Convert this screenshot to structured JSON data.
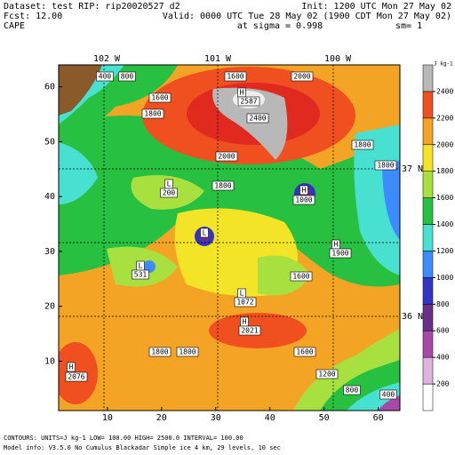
{
  "header": {
    "dataset": "Dataset: test  RIP: rip20020527  d2",
    "init": "Init: 1200 UTC Mon 27 May 02",
    "fcst": "Fcst:     12.00",
    "valid": "Valid: 0000 UTC Tue 28 May 02 (1900 CDT Mon 27 May 02)",
    "field": "CAPE",
    "level": "at sigma = 0.998",
    "smooth": "sm= 1"
  },
  "map": {
    "xlim": [
      1,
      64
    ],
    "ylim": [
      1,
      64
    ],
    "xticks": [
      10,
      20,
      30,
      40,
      50,
      60
    ],
    "yticks": [
      10,
      20,
      30,
      40,
      50,
      60
    ],
    "longitudes": [
      "102 W",
      "101 W",
      "100 W"
    ],
    "latitudes": [
      "37 N",
      "36 N"
    ],
    "labels": [
      "400",
      "800",
      "1600",
      "2000",
      "H",
      "2587",
      "1600",
      "1800",
      "2400",
      "2000",
      "1800",
      "1800",
      "1800",
      "L",
      "200",
      "H",
      "1000",
      "L",
      "H",
      "1900",
      "L",
      "531",
      "1600",
      "L",
      "1072",
      "H",
      "2021",
      "1800",
      "1800",
      "1600",
      "H",
      "2076",
      "1200",
      "800",
      "400"
    ]
  },
  "colorbar": {
    "units": "J kg-1",
    "levels": [
      200,
      400,
      600,
      800,
      1000,
      1200,
      1400,
      1600,
      1800,
      2000,
      2200,
      2400
    ],
    "colors": [
      "#ffffff",
      "#dcb4dc",
      "#a848a8",
      "#683088",
      "#3434c4",
      "#3c8cff",
      "#48e0d0",
      "#28c040",
      "#a8e040",
      "#f4e428",
      "#f4a424",
      "#f05020",
      "#b8b8b8"
    ]
  },
  "footer": {
    "contours": "CONTOURS:  UNITS=J kg-1   LOW=   100.00    HIGH=  2500.0    INTERVAL=    100.00",
    "model": "Model info: V3.5.0  No Cumulus  Blackadar  Simple ice     4 km,  29 levels,  10 sec"
  }
}
